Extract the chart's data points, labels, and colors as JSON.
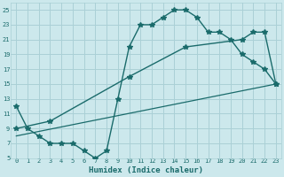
{
  "xlabel": "Humidex (Indice chaleur)",
  "bg_color": "#cce8ec",
  "grid_color": "#aad0d6",
  "line_color": "#1a6b6b",
  "xlim": [
    -0.5,
    23.5
  ],
  "ylim": [
    5,
    26
  ],
  "xticks": [
    0,
    1,
    2,
    3,
    4,
    5,
    6,
    7,
    8,
    9,
    10,
    11,
    12,
    13,
    14,
    15,
    16,
    17,
    18,
    19,
    20,
    21,
    22,
    23
  ],
  "yticks": [
    5,
    7,
    9,
    11,
    13,
    15,
    17,
    19,
    21,
    23,
    25
  ],
  "curve1_x": [
    0,
    1,
    2,
    3,
    4,
    5,
    6,
    7,
    8,
    9,
    10,
    11,
    12,
    13,
    14,
    15,
    16,
    17,
    18,
    19,
    20,
    21,
    22,
    23
  ],
  "curve1_y": [
    12,
    9,
    8,
    7,
    7,
    7,
    6,
    5,
    6,
    13,
    20,
    23,
    23,
    24,
    25,
    25,
    24,
    22,
    22,
    21,
    19,
    18,
    17,
    15
  ],
  "curve2_x": [
    0,
    3,
    10,
    15,
    20,
    21,
    22,
    23
  ],
  "curve2_y": [
    9,
    10,
    16,
    20,
    21,
    22,
    22,
    15
  ],
  "curve3_x": [
    0,
    23
  ],
  "curve3_y": [
    8,
    15
  ]
}
